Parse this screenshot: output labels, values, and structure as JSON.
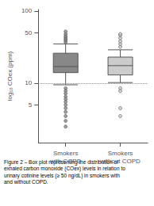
{
  "chart_data": {
    "type": "boxplot",
    "categories": [
      "Smokers\nwith COPD",
      "Smokers\nwithout COPD"
    ],
    "y_label": "log₁₀ COex (ppm)",
    "caption": "Figure 2 – Box plot representing the distribution of\nexhaled carbon monoxide (COex) levels in relation to\nurinary cotinine levels (≥ 50 ng/dL) in smokers with\nand without COPD.",
    "log": "y",
    "ylim": [
      1.5,
      105
    ],
    "yticks": [
      5,
      10,
      50,
      100
    ],
    "grid": false,
    "reference_line": 10,
    "boxes": [
      {
        "q1": 14,
        "median": 17,
        "q3": 26,
        "whisker_low": 9.5,
        "whisker_high": 35,
        "outliers_low": [
          8.5,
          7.8,
          7.2,
          6.5,
          6.0,
          5.5,
          5.0,
          4.5,
          4.0,
          3.5,
          3.0,
          2.5
        ],
        "outliers_high": [
          37,
          39,
          41,
          43,
          45,
          48,
          52
        ],
        "color": "#888888"
      },
      {
        "q1": 13,
        "median": 17.5,
        "q3": 23,
        "whisker_low": 10.2,
        "whisker_high": 29,
        "outliers_low": [
          8.5,
          7.8,
          4.5,
          3.5
        ],
        "outliers_high": [
          32,
          35,
          38,
          42,
          46,
          48
        ],
        "color": "#cccccc"
      }
    ]
  }
}
